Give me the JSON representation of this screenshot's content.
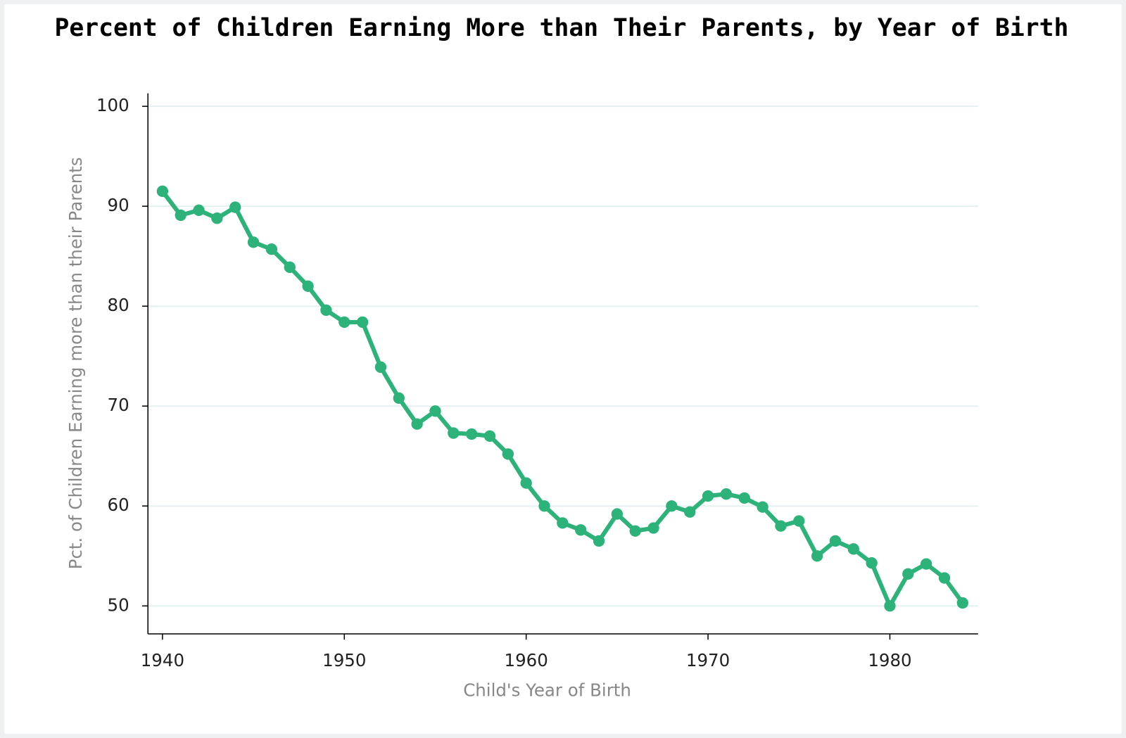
{
  "chart_data": {
    "type": "line",
    "title": "Percent of Children Earning More than Their Parents, by Year of Birth",
    "x_label": "Child's Year of Birth",
    "y_label": "Pct. of Children Earning more than their Parents",
    "x": [
      1940,
      1941,
      1942,
      1943,
      1944,
      1945,
      1946,
      1947,
      1948,
      1949,
      1950,
      1951,
      1952,
      1953,
      1954,
      1955,
      1956,
      1957,
      1958,
      1959,
      1960,
      1961,
      1962,
      1963,
      1964,
      1965,
      1966,
      1967,
      1968,
      1969,
      1970,
      1971,
      1972,
      1973,
      1974,
      1975,
      1976,
      1977,
      1978,
      1979,
      1980,
      1981,
      1982,
      1983,
      1984
    ],
    "series": [
      {
        "color": "#2db37a",
        "values": [
          91.5,
          89.1,
          89.6,
          88.8,
          89.9,
          86.4,
          85.7,
          83.9,
          82.0,
          79.6,
          78.4,
          78.4,
          73.9,
          70.8,
          68.2,
          69.5,
          67.3,
          67.2,
          67.0,
          65.2,
          62.3,
          60.0,
          58.3,
          57.6,
          56.5,
          59.2,
          57.5,
          57.8,
          60.0,
          59.4,
          61.0,
          61.2,
          60.8,
          59.9,
          58.0,
          58.5,
          55.0,
          56.5,
          55.7,
          54.3,
          50.0,
          53.2,
          54.2,
          52.8,
          50.3
        ]
      }
    ],
    "xlim": [
      1939.2,
      1984.85
    ],
    "xticks": [
      1940,
      1950,
      1960,
      1970,
      1980
    ],
    "ylim": [
      47.2,
      101.3
    ],
    "yticks": [
      50,
      60,
      70,
      80,
      90,
      100
    ],
    "grid": true
  }
}
